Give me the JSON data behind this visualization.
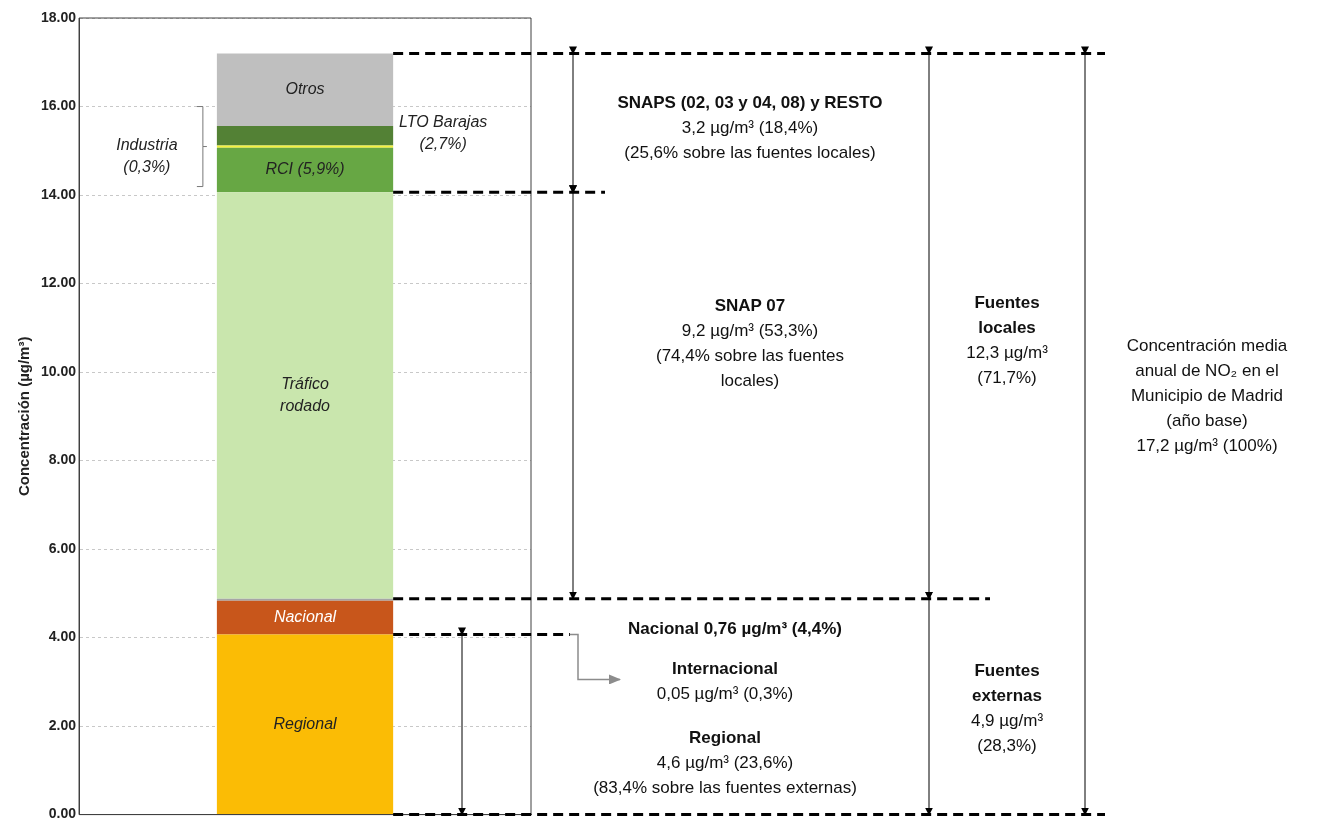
{
  "chart_data": {
    "type": "bar",
    "stacked": true,
    "categories": [
      null
    ],
    "ylabel": "Concentración (µg/m³)",
    "ylim": [
      0,
      18
    ],
    "yticks": [
      {
        "value": 0,
        "label": "0.00"
      },
      {
        "value": 2,
        "label": "2.00"
      },
      {
        "value": 4,
        "label": "4.00"
      },
      {
        "value": 6,
        "label": "6.00"
      },
      {
        "value": 8,
        "label": "8.00"
      },
      {
        "value": 10,
        "label": "10.00"
      },
      {
        "value": 12,
        "label": "12.00"
      },
      {
        "value": 14,
        "label": "14.00"
      },
      {
        "value": 16,
        "label": "16.00"
      },
      {
        "value": 18,
        "label": "18.00"
      }
    ],
    "grid": "y",
    "tick_labels": "y",
    "series": [
      {
        "name": "Regional",
        "color": "#fbbc05",
        "values": [
          4.07
        ]
      },
      {
        "name": "Nacional",
        "color": "#c8561b",
        "values": [
          0.76
        ]
      },
      {
        "color": "#a6a6a6",
        "values": [
          0.05
        ]
      },
      {
        "name": "Tráfico rodado",
        "color": "#c9e6ad",
        "values": [
          9.18
        ]
      },
      {
        "name": "RCI (5,9%)",
        "color": "#67a744",
        "values": [
          1.01
        ]
      },
      {
        "name": "Industria (0,3%)",
        "color": "#f2f23c",
        "values": [
          0.05
        ]
      },
      {
        "name": "LTO Barajas (2,7%)",
        "color": "#538135",
        "values": [
          0.44
        ]
      },
      {
        "name": "Otros",
        "color": "#bfbfbf",
        "values": [
          1.64
        ]
      }
    ],
    "ref_lines": [
      {
        "axis": "y",
        "value": 17.2,
        "color": "#000000",
        "line_style": "dashed"
      },
      {
        "axis": "y",
        "value": 14.06,
        "color": "#000000",
        "line_style": "dashed"
      },
      {
        "axis": "y",
        "value": 4.88,
        "color": "#000000",
        "line_style": "dashed"
      },
      {
        "axis": "y",
        "value": 4.07,
        "color": "#000000",
        "line_style": "dashed"
      },
      {
        "axis": "y",
        "value": 0,
        "color": "#000000",
        "line_style": "dashed"
      }
    ],
    "annotations": [
      "SNAPS (02, 03 y 04, 08) y RESTO\n3,2 µg/m³ (18,4%)\n(25,6% sobre las fuentes locales)",
      "SNAP 07\n9,2 µg/m³ (53,3%)\n(74,4% sobre las fuentes\nlocales)",
      "Fuentes\nlocales\n12,3 µg/m³\n(71,7%)",
      "Concentración media\nanual de NO₂ en el\nMunicipio de Madrid\n(año base)\n17,2 µg/m³ (100%)",
      "Nacional 0,76 µg/m³ (4,4%)",
      "Internacional\n0,05 µg/m³ (0,3%)",
      "Regional\n4,6 µg/m³ (23,6%)\n(83,4% sobre las fuentes externas)",
      "Fuentes\nexternas\n4,9 µg/m³\n(28,3%)"
    ]
  }
}
